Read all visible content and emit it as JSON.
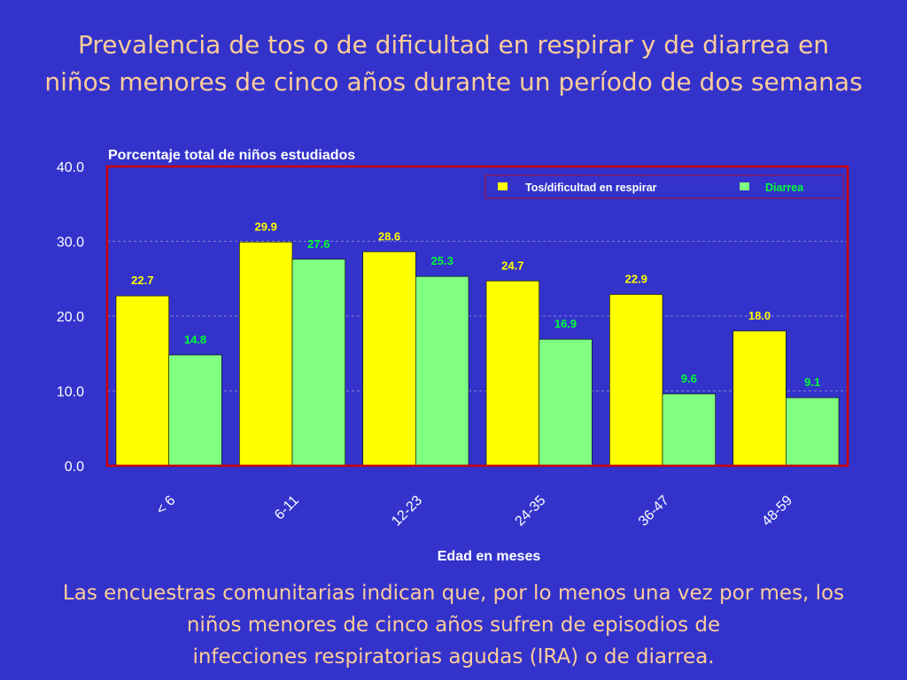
{
  "title": {
    "line1": "Prevalencia de tos o de dificultad en respirar y de diarrea en",
    "line2": "niños menores de cinco años durante un período de dos semanas"
  },
  "colors": {
    "background": "#3333cc",
    "title_text": "#ffcc99",
    "series1": "#ffff00",
    "series2": "#80ff80",
    "plot_border": "#cc0000",
    "series1_label": "#ffff00",
    "series2_label": "#00ff33"
  },
  "chart_data": {
    "type": "bar",
    "ylabel": "Porcentaje total de niños estudiados",
    "xlabel": "Edad en meses",
    "ylim": [
      0,
      40
    ],
    "yticks": [
      "0.0",
      "10.0",
      "20.0",
      "30.0",
      "40.0"
    ],
    "categories": [
      "< 6",
      "6-11",
      "12-23",
      "24-35",
      "36-47",
      "48-59"
    ],
    "series": [
      {
        "name": "Tos/dificultad en respirar",
        "values": [
          22.7,
          29.9,
          28.6,
          24.7,
          22.9,
          18.0
        ],
        "labels": [
          "22.7",
          "29.9",
          "28.6",
          "24.7",
          "22.9",
          "18.0"
        ]
      },
      {
        "name": "Diarrea",
        "values": [
          14.8,
          27.6,
          25.3,
          16.9,
          9.6,
          9.1
        ],
        "labels": [
          "14.8",
          "27.6",
          "25.3",
          "16.9",
          "9.6",
          "9.1"
        ]
      }
    ],
    "grid": true,
    "legend_position": "top-right"
  },
  "footer": {
    "line1": "Las encuestras comunitarias indican que, por lo menos una vez por mes, los",
    "line2": "niños menores de cinco años sufren de episodios de",
    "line3": "infecciones respiratorias agudas (IRA) o de diarrea."
  }
}
